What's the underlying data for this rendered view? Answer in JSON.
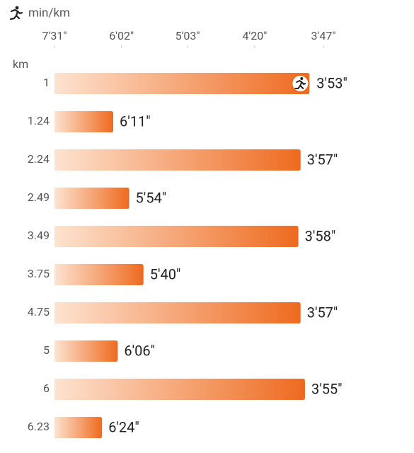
{
  "chart_data": {
    "type": "bar",
    "orientation": "horizontal",
    "scale": "reciprocal",
    "x_label": "min/km",
    "y_label": "km",
    "categories": [
      "1",
      "1.24",
      "2.24",
      "2.49",
      "3.49",
      "3.75",
      "4.75",
      "5",
      "6",
      "6.23"
    ],
    "values": [
      233,
      371,
      237,
      354,
      238,
      340,
      237,
      366,
      235,
      384
    ],
    "value_labels": [
      "3'53\"",
      "6'11\"",
      "3'57\"",
      "5'54\"",
      "3'58\"",
      "5'40\"",
      "3'57\"",
      "6'06\"",
      "3'55\"",
      "6'24\""
    ],
    "color": "#ee6a1f",
    "xlim": [
      451,
      227
    ],
    "xticks": [
      {
        "value": 451,
        "label": "7'31\""
      },
      {
        "value": 362,
        "label": "6'02\""
      },
      {
        "value": 303,
        "label": "5'03\""
      },
      {
        "value": 260,
        "label": "4'20\""
      },
      {
        "value": 227,
        "label": "3'47\""
      }
    ]
  }
}
